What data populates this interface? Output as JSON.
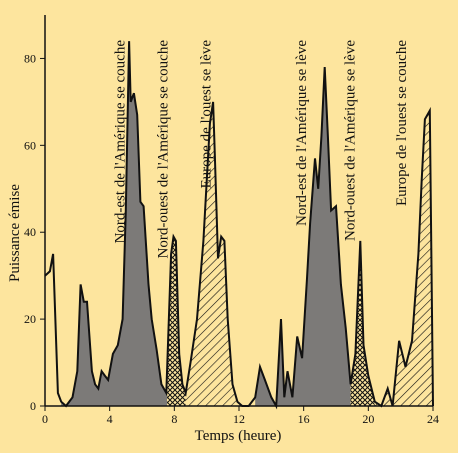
{
  "colors": {
    "background": "#fde59e",
    "dark_fill": "#7c7a78",
    "outline": "#111111"
  },
  "chart_data": {
    "type": "area",
    "title": "",
    "xlabel": "Temps (heure)",
    "ylabel": "Puissance émise",
    "xlim": [
      0,
      24
    ],
    "ylim": [
      0,
      90
    ],
    "x_ticks": [
      0,
      4,
      8,
      12,
      16,
      20,
      24
    ],
    "y_ticks": [
      0,
      20,
      40,
      60,
      80
    ],
    "grid": false,
    "legend": "none",
    "series": [
      {
        "x": [
          0,
          0.3,
          0.5,
          0.8,
          1.0,
          1.3,
          1.7,
          2.0,
          2.2,
          2.4,
          2.6,
          2.9,
          3.1,
          3.3,
          3.5,
          3.7,
          3.9,
          4.2,
          4.5,
          4.8,
          5.0,
          5.2,
          5.3,
          5.5,
          5.7,
          5.9,
          6.1,
          6.4,
          6.6,
          6.9,
          7.2,
          7.5,
          7.8,
          7.95,
          8.1,
          8.3,
          8.5,
          8.7,
          9.0,
          9.4,
          9.8,
          10.2,
          10.4,
          10.5,
          10.7,
          10.9,
          11.1,
          11.3,
          11.6,
          11.9,
          12.2,
          12.6,
          13.0,
          13.3,
          13.6,
          14.0,
          14.3,
          14.6,
          14.8,
          15.0,
          15.3,
          15.6,
          15.9,
          16.2,
          16.4,
          16.7,
          16.9,
          17.1,
          17.3,
          17.5,
          17.7,
          18.0,
          18.3,
          18.6,
          18.9,
          19.2,
          19.5,
          19.7,
          20.0,
          20.4,
          20.8,
          21.2,
          21.5,
          21.9,
          22.3,
          22.7,
          23.1,
          23.3,
          23.5,
          23.8,
          24.0
        ],
        "values": [
          30,
          31,
          35,
          3,
          1,
          0,
          2,
          8,
          28,
          24,
          24,
          8,
          5,
          4,
          8,
          7,
          6,
          12,
          14,
          20,
          45,
          84,
          70,
          72,
          67,
          47,
          46,
          28,
          20,
          13,
          5,
          3,
          35,
          39,
          38,
          12,
          5,
          3,
          10,
          20,
          38,
          65,
          70,
          58,
          34,
          39,
          38,
          20,
          5,
          1,
          0,
          0,
          2,
          9,
          6,
          2,
          0,
          20,
          2,
          8,
          2,
          16,
          11,
          29,
          42,
          57,
          50,
          62,
          78,
          62,
          45,
          46,
          28,
          18,
          5,
          12,
          38,
          14,
          7,
          1,
          0,
          4,
          0,
          15,
          9,
          15,
          35,
          52,
          66,
          68,
          0
        ]
      }
    ],
    "regions": [
      {
        "label": "Nord-est de l'Amérique se couche",
        "x_center": 5.3,
        "pattern": "dark"
      },
      {
        "label": "Nord-ouest de l'Amérique se couche",
        "x_center": 7.95,
        "pattern": "crosshatch"
      },
      {
        "label": "Europe de l'ouest se lève",
        "x_center": 10.6,
        "pattern": "hatch"
      },
      {
        "label": "Nord-est de l'Amérique se lève",
        "x_center": 16.5,
        "pattern": "dark"
      },
      {
        "label": "Nord-ouest de l'Amérique se lève",
        "x_center": 19.5,
        "pattern": "crosshatch"
      },
      {
        "label": "Europe de l'ouest se couche",
        "x_center": 22.7,
        "pattern": "hatch"
      }
    ]
  }
}
